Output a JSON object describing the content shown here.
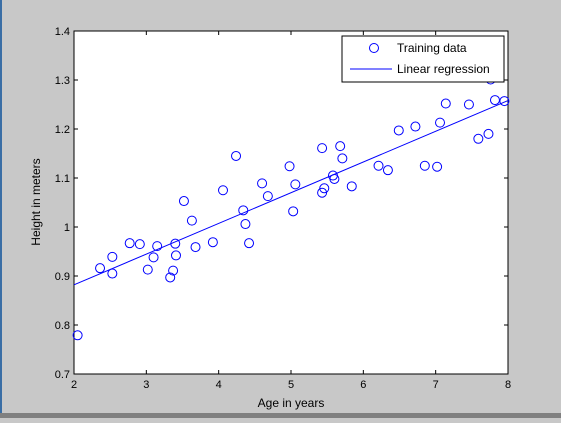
{
  "chart_data": {
    "type": "scatter",
    "xlabel": "Age in years",
    "ylabel": "Height in meters",
    "xlim": [
      2,
      8
    ],
    "ylim": [
      0.7,
      1.4
    ],
    "xticks": [
      2,
      3,
      4,
      5,
      6,
      7,
      8
    ],
    "yticks": [
      0.7,
      0.8,
      0.9,
      1.0,
      1.1,
      1.2,
      1.3,
      1.4
    ],
    "xtick_labels": [
      "2",
      "3",
      "4",
      "5",
      "6",
      "7",
      "8"
    ],
    "ytick_labels": [
      "0.7",
      "0.8",
      "0.9",
      "1",
      "1.1",
      "1.2",
      "1.3",
      "1.4"
    ],
    "grid": false,
    "legend_position": "top-right",
    "series": [
      {
        "name": "Training data",
        "marker": "circle",
        "color": "#0000ff",
        "points": [
          [
            2.05,
            0.779
          ],
          [
            2.36,
            0.916
          ],
          [
            2.53,
            0.905
          ],
          [
            2.53,
            0.939
          ],
          [
            2.77,
            0.967
          ],
          [
            2.91,
            0.965
          ],
          [
            3.02,
            0.913
          ],
          [
            3.1,
            0.938
          ],
          [
            3.15,
            0.961
          ],
          [
            3.33,
            0.897
          ],
          [
            3.37,
            0.911
          ],
          [
            3.41,
            0.942
          ],
          [
            3.4,
            0.966
          ],
          [
            3.52,
            1.053
          ],
          [
            3.63,
            1.013
          ],
          [
            3.68,
            0.959
          ],
          [
            3.92,
            0.969
          ],
          [
            4.06,
            1.075
          ],
          [
            4.24,
            1.145
          ],
          [
            4.34,
            1.034
          ],
          [
            4.37,
            1.006
          ],
          [
            4.42,
            0.967
          ],
          [
            4.6,
            1.089
          ],
          [
            4.68,
            1.063
          ],
          [
            4.98,
            1.124
          ],
          [
            5.03,
            1.032
          ],
          [
            5.06,
            1.087
          ],
          [
            5.43,
            1.161
          ],
          [
            5.43,
            1.07
          ],
          [
            5.46,
            1.079
          ],
          [
            5.58,
            1.105
          ],
          [
            5.6,
            1.098
          ],
          [
            5.68,
            1.165
          ],
          [
            5.71,
            1.14
          ],
          [
            5.84,
            1.083
          ],
          [
            6.21,
            1.125
          ],
          [
            6.34,
            1.116
          ],
          [
            6.49,
            1.197
          ],
          [
            6.72,
            1.205
          ],
          [
            6.85,
            1.125
          ],
          [
            7.02,
            1.123
          ],
          [
            7.06,
            1.213
          ],
          [
            7.14,
            1.252
          ],
          [
            7.46,
            1.25
          ],
          [
            7.59,
            1.18
          ],
          [
            7.73,
            1.19
          ],
          [
            7.76,
            1.301
          ],
          [
            7.82,
            1.259
          ],
          [
            7.95,
            1.257
          ]
        ]
      },
      {
        "name": "Linear regression",
        "line": "solid",
        "color": "#0000ff",
        "points": [
          [
            2,
            0.882
          ],
          [
            8,
            1.258
          ]
        ]
      }
    ]
  }
}
